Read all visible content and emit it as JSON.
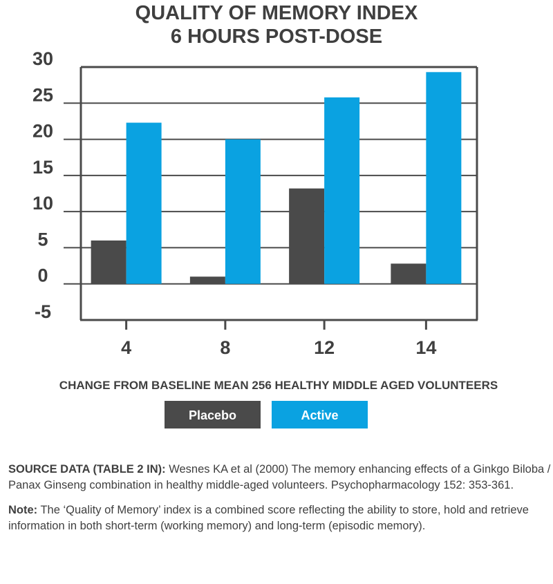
{
  "chart_data": {
    "type": "bar",
    "title_lines": [
      "QUALITY OF MEMORY INDEX",
      "6 HOURS POST-DOSE"
    ],
    "xlabel": "CHANGE FROM BASELINE MEAN 256 HEALTHY MIDDLE AGED VOLUNTEERS",
    "ylabel": "",
    "categories": [
      "4",
      "8",
      "12",
      "14"
    ],
    "yticks": [
      "30",
      "25",
      "20",
      "15",
      "10",
      "5",
      "0",
      "-5"
    ],
    "ylim": [
      -5,
      30
    ],
    "grid": true,
    "legend_position": "bottom",
    "series": [
      {
        "name": "Placebo",
        "color": "#4a4a4a",
        "values": [
          6,
          1,
          13.2,
          2.8
        ]
      },
      {
        "name": "Active",
        "color": "#0aa2e1",
        "values": [
          22.3,
          20,
          25.8,
          29.3
        ]
      }
    ]
  },
  "notes": {
    "source_label": "SOURCE DATA (TABLE 2 IN):",
    "source_text": " Wesnes KA et al (2000) The memory enhancing effects of a Ginkgo Biloba / Panax Ginseng combination in healthy middle-aged volunteers. Psychopharmacology 152: 353-361.",
    "note_label": "Note:",
    "note_text": " The ‘Quality of Memory’ index is a combined score reflecting the ability to store, hold and retrieve information in both short-term (working memory) and long-term (episodic memory)."
  }
}
